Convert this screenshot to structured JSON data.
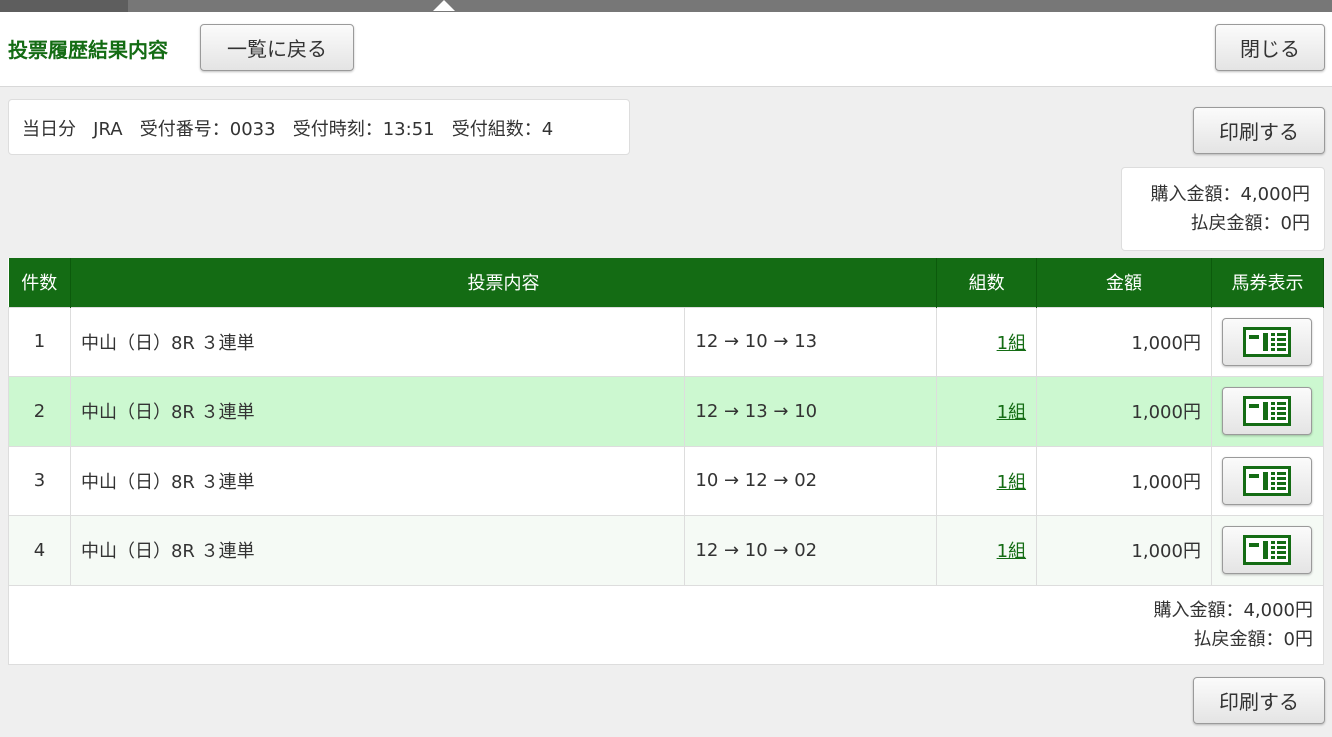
{
  "header": {
    "title": "投票履歴結果内容",
    "back_label": "一覧に戻る",
    "close_label": "閉じる"
  },
  "info": {
    "day": "当日分",
    "org": "JRA",
    "receipt_no": "受付番号：0033",
    "receipt_time": "受付時刻：13:51",
    "count": "受付組数：4"
  },
  "print_label": "印刷する",
  "summary": {
    "purchase": "購入金額：4,000円",
    "refund": "払戻金額：0円"
  },
  "table": {
    "headers": [
      "件数",
      "投票内容",
      "組数",
      "金額",
      "馬券表示"
    ],
    "rows": [
      {
        "no": "1",
        "race": "中山（日）8R ３連単",
        "combo": "12 → 10 → 13",
        "sets": "1組",
        "amount": "1,000円"
      },
      {
        "no": "2",
        "race": "中山（日）8R ３連単",
        "combo": "12 → 13 → 10",
        "sets": "1組",
        "amount": "1,000円"
      },
      {
        "no": "3",
        "race": "中山（日）8R ３連単",
        "combo": "10 → 12 → 02",
        "sets": "1組",
        "amount": "1,000円"
      },
      {
        "no": "4",
        "race": "中山（日）8R ３連単",
        "combo": "12 → 10 → 02",
        "sets": "1組",
        "amount": "1,000円"
      }
    ],
    "ticket_icon": "ticket-icon"
  },
  "colors": {
    "accent": "#146c14",
    "highlight_row": "#ccf8d0"
  }
}
